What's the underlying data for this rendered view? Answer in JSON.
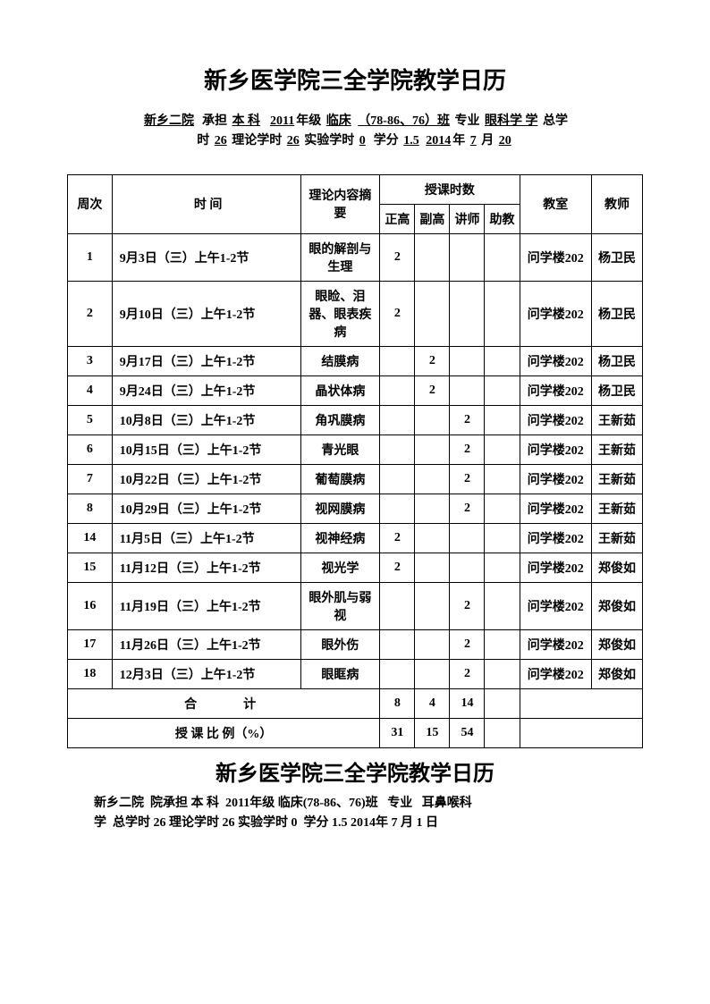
{
  "main_title": "新乡医学院三全学院教学日历",
  "header1": {
    "hospital": "新乡二院",
    "role_prefix": "承担",
    "level": "本 科",
    "year": "2011",
    "year_suffix": "年级",
    "major_prefix": "临床",
    "class": "（78-86、76）班",
    "subject_label": "专业",
    "subject": "眼科学 学",
    "total_label": "总学",
    "line2_prefix": "时",
    "total_hours": "26",
    "theory_label": "理论学时",
    "theory_hours": "26",
    "lab_label": "实验学时",
    "lab_hours": "0",
    "credit_label": "学分",
    "credits": "1.5",
    "date_year": "2014",
    "date_year_suffix": "年",
    "date_month": "7",
    "date_month_suffix": "月",
    "date_day": "20"
  },
  "columns": {
    "week": "周次",
    "time": "时 间",
    "content": "理论内容摘要",
    "hours_group": "授课时数",
    "zhenggao": "正高",
    "fugao": "副高",
    "jiangshi": "讲师",
    "zhujiao": "助教",
    "room": "教室",
    "teacher": "教师"
  },
  "rows": [
    {
      "week": "1",
      "time": "9月3日（三）上午1-2节",
      "content": "眼的解剖与生理",
      "zg": "2",
      "fg": "",
      "js": "",
      "zj": "",
      "room": "问学楼202",
      "teacher": "杨卫民"
    },
    {
      "week": "2",
      "time": "9月10日（三）上午1-2节",
      "content": "眼睑、泪器、眼表疾病",
      "zg": "2",
      "fg": "",
      "js": "",
      "zj": "",
      "room": "问学楼202",
      "teacher": "杨卫民"
    },
    {
      "week": "3",
      "time": "9月17日（三）上午1-2节",
      "content": "结膜病",
      "zg": "",
      "fg": "2",
      "js": "",
      "zj": "",
      "room": "问学楼202",
      "teacher": "杨卫民"
    },
    {
      "week": "4",
      "time": "9月24日（三）上午1-2节",
      "content": "晶状体病",
      "zg": "",
      "fg": "2",
      "js": "",
      "zj": "",
      "room": "问学楼202",
      "teacher": "杨卫民"
    },
    {
      "week": "5",
      "time": "10月8日（三）上午1-2节",
      "content": "角巩膜病",
      "zg": "",
      "fg": "",
      "js": "2",
      "zj": "",
      "room": "问学楼202",
      "teacher": "王新茹"
    },
    {
      "week": "6",
      "time": "10月15日（三）上午1-2节",
      "content": "青光眼",
      "zg": "",
      "fg": "",
      "js": "2",
      "zj": "",
      "room": "问学楼202",
      "teacher": "王新茹"
    },
    {
      "week": "7",
      "time": "10月22日（三）上午1-2节",
      "content": "葡萄膜病",
      "zg": "",
      "fg": "",
      "js": "2",
      "zj": "",
      "room": "问学楼202",
      "teacher": "王新茹"
    },
    {
      "week": "8",
      "time": "10月29日（三）上午1-2节",
      "content": "视网膜病",
      "zg": "",
      "fg": "",
      "js": "2",
      "zj": "",
      "room": "问学楼202",
      "teacher": "王新茹"
    },
    {
      "week": "14",
      "time": "11月5日（三）上午1-2节",
      "content": "视神经病",
      "zg": "2",
      "fg": "",
      "js": "",
      "zj": "",
      "room": "问学楼202",
      "teacher": "王新茹"
    },
    {
      "week": "15",
      "time": "11月12日（三）上午1-2节",
      "content": "视光学",
      "zg": "2",
      "fg": "",
      "js": "",
      "zj": "",
      "room": "问学楼202",
      "teacher": "郑俊如"
    },
    {
      "week": "16",
      "time": "11月19日（三）上午1-2节",
      "content": "眼外肌与弱视",
      "zg": "",
      "fg": "",
      "js": "2",
      "zj": "",
      "room": "问学楼202",
      "teacher": "郑俊如"
    },
    {
      "week": "17",
      "time": "11月26日（三）上午1-2节",
      "content": "眼外伤",
      "zg": "",
      "fg": "",
      "js": "2",
      "zj": "",
      "room": "问学楼202",
      "teacher": "郑俊如"
    },
    {
      "week": "18",
      "time": "12月3日（三）上午1-2节",
      "content": "眼眶病",
      "zg": "",
      "fg": "",
      "js": "2",
      "zj": "",
      "room": "问学楼202",
      "teacher": "郑俊如"
    }
  ],
  "totals": {
    "label": "合　　计",
    "zg": "8",
    "fg": "4",
    "js": "14",
    "zj": ""
  },
  "ratio": {
    "label": "授 课 比 例（%）",
    "zg": "31",
    "fg": "15",
    "js": "54",
    "zj": ""
  },
  "title2": "新乡医学院三全学院教学日历",
  "header2": {
    "hospital": "新乡二院",
    "role": "院承担",
    "level": "本 科",
    "year": "2011",
    "year_suffix": "年级",
    "major": "临床(78-86、76)班",
    "subject_label": "专业",
    "subject": "耳鼻喉科",
    "line2_prefix": "学",
    "total_label": "总学时",
    "total_hours": "26",
    "theory_label": "理论学时",
    "theory_hours": "26",
    "lab_label": "实验学时",
    "lab_hours": "0",
    "credit_label": "学分",
    "credits": "1.5",
    "date_year": "2014",
    "date_year_suffix": "年",
    "date_month": "7",
    "date_month_suffix": "月",
    "date_day": "1",
    "date_day_suffix": "日"
  }
}
